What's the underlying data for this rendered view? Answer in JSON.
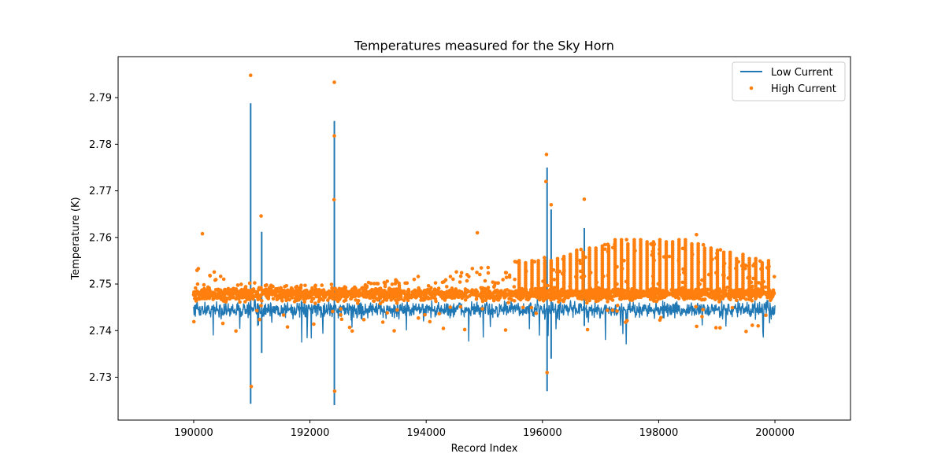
{
  "chart_data": {
    "type": "line+scatter",
    "title": "Temperatures measured for the Sky Horn",
    "xlabel": "Record Index",
    "ylabel": "Temperature (K)",
    "xlim": [
      188700,
      201300
    ],
    "ylim": [
      2.7208,
      2.7988
    ],
    "xticks": [
      190000,
      192000,
      194000,
      196000,
      198000,
      200000
    ],
    "xtick_labels": [
      "190000",
      "192000",
      "194000",
      "196000",
      "198000",
      "200000"
    ],
    "yticks": [
      2.73,
      2.74,
      2.75,
      2.76,
      2.77,
      2.78,
      2.79
    ],
    "ytick_labels": [
      "2.73",
      "2.74",
      "2.75",
      "2.76",
      "2.77",
      "2.78",
      "2.79"
    ],
    "grid": false,
    "legend_position": "top-right",
    "series": [
      {
        "name": "Low Current",
        "kind": "line",
        "color": "#1f77b4",
        "baseline": 2.7445,
        "noise": 0.0025,
        "x_range": [
          190000,
          200000
        ],
        "spikes": [
          {
            "x": 190980,
            "low": 2.7243,
            "high": 2.7888
          },
          {
            "x": 191170,
            "low": 2.7352,
            "high": 2.7612
          },
          {
            "x": 192420,
            "low": 2.724,
            "high": 2.785
          },
          {
            "x": 196080,
            "low": 2.727,
            "high": 2.775
          },
          {
            "x": 196150,
            "low": 2.734,
            "high": 2.766
          },
          {
            "x": 196720,
            "low": 2.741,
            "high": 2.762
          }
        ]
      },
      {
        "name": "High Current",
        "kind": "scatter",
        "color": "#ff7f0e",
        "baseline": 2.7478,
        "noise": 0.0018,
        "x_range": [
          190000,
          200000
        ],
        "envelope_top": [
          [
            190000,
            2.754
          ],
          [
            190300,
            2.753
          ],
          [
            190800,
            2.751
          ],
          [
            191500,
            2.75
          ],
          [
            192500,
            2.75
          ],
          [
            193500,
            2.751
          ],
          [
            194500,
            2.753
          ],
          [
            195500,
            2.755
          ],
          [
            196500,
            2.757
          ],
          [
            197300,
            2.76
          ],
          [
            197800,
            2.7605
          ],
          [
            198300,
            2.76
          ],
          [
            198800,
            2.759
          ],
          [
            199300,
            2.757
          ],
          [
            200000,
            2.755
          ]
        ],
        "outliers": [
          {
            "x": 190980,
            "y": 2.7948
          },
          {
            "x": 190990,
            "y": 2.728
          },
          {
            "x": 191160,
            "y": 2.7646
          },
          {
            "x": 192420,
            "y": 2.7933
          },
          {
            "x": 192420,
            "y": 2.7818
          },
          {
            "x": 192415,
            "y": 2.7681
          },
          {
            "x": 192425,
            "y": 2.727
          },
          {
            "x": 196070,
            "y": 2.7778
          },
          {
            "x": 196060,
            "y": 2.772
          },
          {
            "x": 196150,
            "y": 2.767
          },
          {
            "x": 196080,
            "y": 2.731
          },
          {
            "x": 196720,
            "y": 2.7682
          },
          {
            "x": 190150,
            "y": 2.7608
          },
          {
            "x": 194880,
            "y": 2.761
          },
          {
            "x": 198650,
            "y": 2.7606
          }
        ]
      }
    ]
  }
}
